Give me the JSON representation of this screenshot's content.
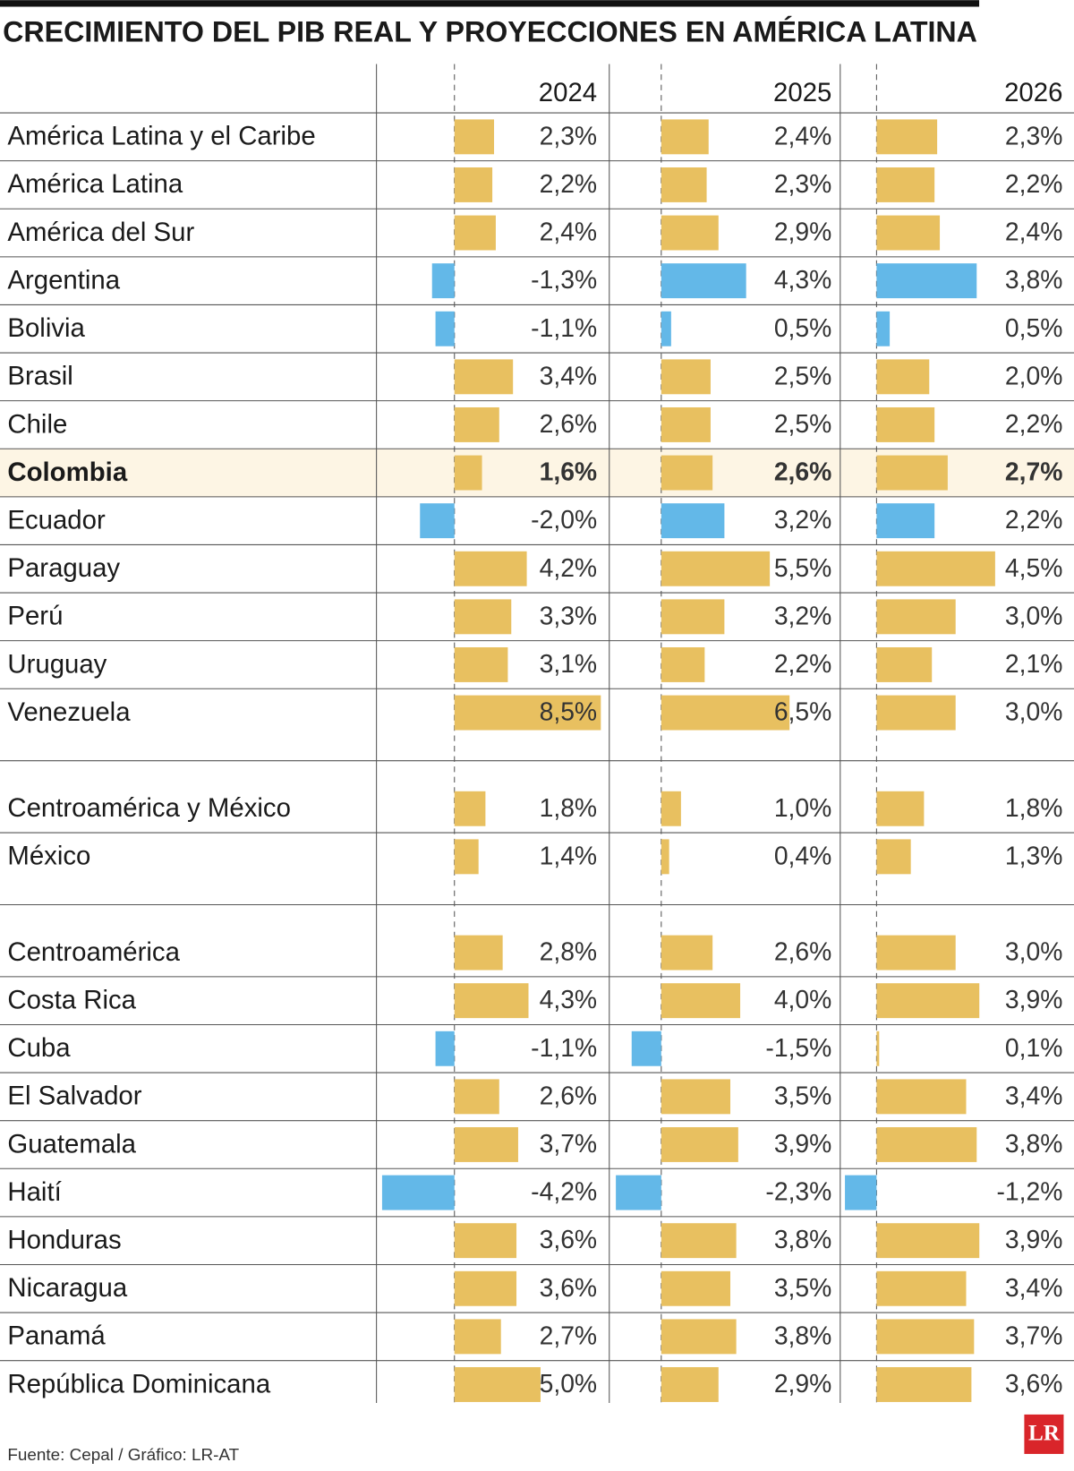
{
  "chart_data": {
    "type": "bar-table",
    "title": "CRECIMIENTO DEL PIB REAL Y PROYECCIONES EN AMÉRICA LATINA",
    "source": "Fuente: Cepal / Gráfico: LR-AT",
    "logo": "LR",
    "highlight_row": 7,
    "categories": [
      "América Latina y el Caribe",
      "América Latina",
      "América del Sur",
      "Argentina",
      "Bolivia",
      "Brasil",
      "Chile",
      "Colombia",
      "Ecuador",
      "Paraguay",
      "Perú",
      "Uruguay",
      "Venezuela",
      null,
      "Centroamérica y México",
      "México",
      null,
      "Centroamérica",
      "Costa Rica",
      "Cuba",
      "El Salvador",
      "Guatemala",
      "Haití",
      "Honduras",
      "Nicaragua",
      "Panamá",
      "República Dominicana"
    ],
    "series": [
      {
        "name": "2024",
        "xlim": [
          -4.2,
          8.5
        ],
        "values": [
          2.3,
          2.2,
          2.4,
          -1.3,
          -1.1,
          3.4,
          2.6,
          1.6,
          -2.0,
          4.2,
          3.3,
          3.1,
          8.5,
          null,
          1.8,
          1.4,
          null,
          2.8,
          4.3,
          -1.1,
          2.6,
          3.7,
          -4.2,
          3.6,
          3.6,
          2.7,
          5.0
        ],
        "value_labels": [
          "2,3%",
          "2,2%",
          "2,4%",
          "-1,3%",
          "-1,1%",
          "3,4%",
          "2,6%",
          "1,6%",
          "-2,0%",
          "4,2%",
          "3,3%",
          "3,1%",
          "8,5%",
          null,
          "1,8%",
          "1,4%",
          null,
          "2,8%",
          "4,3%",
          "-1,1%",
          "2,6%",
          "3,7%",
          "-4,2%",
          "3,6%",
          "3,6%",
          "2,7%",
          "5,0%"
        ],
        "colors": [
          "#e8c060",
          "#e8c060",
          "#e8c060",
          "#63b8e8",
          "#63b8e8",
          "#e8c060",
          "#e8c060",
          "#e8c060",
          "#63b8e8",
          "#e8c060",
          "#e8c060",
          "#e8c060",
          "#e8c060",
          null,
          "#e8c060",
          "#e8c060",
          null,
          "#e8c060",
          "#e8c060",
          "#63b8e8",
          "#e8c060",
          "#e8c060",
          "#63b8e8",
          "#e8c060",
          "#e8c060",
          "#e8c060",
          "#e8c060"
        ]
      },
      {
        "name": "2025",
        "xlim": [
          -2.3,
          6.5
        ],
        "values": [
          2.4,
          2.3,
          2.9,
          4.3,
          0.5,
          2.5,
          2.5,
          2.6,
          3.2,
          5.5,
          3.2,
          2.2,
          6.5,
          null,
          1.0,
          0.4,
          null,
          2.6,
          4.0,
          -1.5,
          3.5,
          3.9,
          -2.3,
          3.8,
          3.5,
          3.8,
          2.9
        ],
        "value_labels": [
          "2,4%",
          "2,3%",
          "2,9%",
          "4,3%",
          "0,5%",
          "2,5%",
          "2,5%",
          "2,6%",
          "3,2%",
          "5,5%",
          "3,2%",
          "2,2%",
          "6,5%",
          null,
          "1,0%",
          "0,4%",
          null,
          "2,6%",
          "4,0%",
          "-1,5%",
          "3,5%",
          "3,9%",
          "-2,3%",
          "3,8%",
          "3,5%",
          "3,8%",
          "2,9%"
        ],
        "colors": [
          "#e8c060",
          "#e8c060",
          "#e8c060",
          "#63b8e8",
          "#63b8e8",
          "#e8c060",
          "#e8c060",
          "#e8c060",
          "#63b8e8",
          "#e8c060",
          "#e8c060",
          "#e8c060",
          "#e8c060",
          null,
          "#e8c060",
          "#e8c060",
          null,
          "#e8c060",
          "#e8c060",
          "#63b8e8",
          "#e8c060",
          "#e8c060",
          "#63b8e8",
          "#e8c060",
          "#e8c060",
          "#e8c060",
          "#e8c060"
        ]
      },
      {
        "name": "2026",
        "xlim": [
          -1.2,
          4.5
        ],
        "values": [
          2.3,
          2.2,
          2.4,
          3.8,
          0.5,
          2.0,
          2.2,
          2.7,
          2.2,
          4.5,
          3.0,
          2.1,
          3.0,
          null,
          1.8,
          1.3,
          null,
          3.0,
          3.9,
          0.1,
          3.4,
          3.8,
          -1.2,
          3.9,
          3.4,
          3.7,
          3.6
        ],
        "value_labels": [
          "2,3%",
          "2,2%",
          "2,4%",
          "3,8%",
          "0,5%",
          "2,0%",
          "2,2%",
          "2,7%",
          "2,2%",
          "4,5%",
          "3,0%",
          "2,1%",
          "3,0%",
          null,
          "1,8%",
          "1,3%",
          null,
          "3,0%",
          "3,9%",
          "0,1%",
          "3,4%",
          "3,8%",
          "-1,2%",
          "3,9%",
          "3,4%",
          "3,7%",
          "3,6%"
        ],
        "colors": [
          "#e8c060",
          "#e8c060",
          "#e8c060",
          "#63b8e8",
          "#63b8e8",
          "#e8c060",
          "#e8c060",
          "#e8c060",
          "#63b8e8",
          "#e8c060",
          "#e8c060",
          "#e8c060",
          "#e8c060",
          null,
          "#e8c060",
          "#e8c060",
          null,
          "#e8c060",
          "#e8c060",
          "#e8c060",
          "#e8c060",
          "#e8c060",
          "#63b8e8",
          "#e8c060",
          "#e8c060",
          "#e8c060",
          "#e8c060"
        ]
      }
    ]
  }
}
